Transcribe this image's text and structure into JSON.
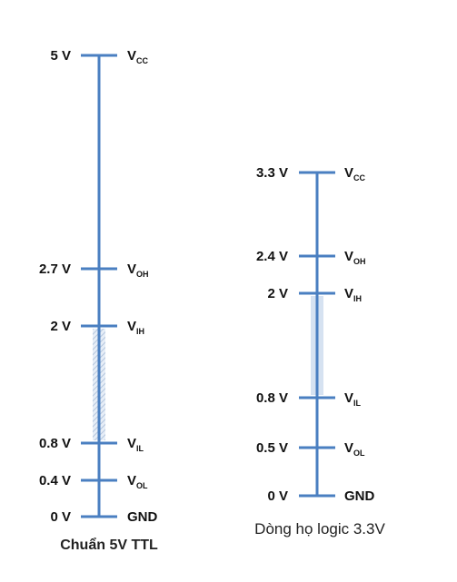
{
  "panels": [
    {
      "id": "ttl-5v",
      "caption": "Chuẩn 5V TTL",
      "caption_bold": true,
      "levels": [
        {
          "voltage": "5 V",
          "label": "V",
          "sub": "CC",
          "value": 5.0
        },
        {
          "voltage": "2.7 V",
          "label": "V",
          "sub": "OH",
          "value": 2.7
        },
        {
          "voltage": "2 V",
          "label": "V",
          "sub": "IH",
          "value": 2.0
        },
        {
          "voltage": "0.8 V",
          "label": "V",
          "sub": "IL",
          "value": 0.8
        },
        {
          "voltage": "0.4 V",
          "label": "V",
          "sub": "OL",
          "value": 0.4
        },
        {
          "voltage": "0 V",
          "label": "GND",
          "sub": "",
          "value": 0.0
        }
      ],
      "undefined_region": {
        "from": 0.8,
        "to": 2.0,
        "style": "hatched"
      }
    },
    {
      "id": "logic-3v3",
      "caption": "Dòng họ logic 3.3V",
      "caption_bold": false,
      "levels": [
        {
          "voltage": "3.3 V",
          "label": "V",
          "sub": "CC",
          "value": 3.3
        },
        {
          "voltage": "2.4 V",
          "label": "V",
          "sub": "OH",
          "value": 2.4
        },
        {
          "voltage": "2 V",
          "label": "V",
          "sub": "IH",
          "value": 2.0
        },
        {
          "voltage": "0.8 V",
          "label": "V",
          "sub": "IL",
          "value": 0.8
        },
        {
          "voltage": "0.5 V",
          "label": "V",
          "sub": "OL",
          "value": 0.5
        },
        {
          "voltage": "0 V",
          "label": "GND",
          "sub": "",
          "value": 0.0
        }
      ],
      "undefined_region": {
        "from": 0.8,
        "to": 2.0,
        "style": "solid"
      }
    }
  ],
  "colors": {
    "axis": "#4a7fc1",
    "hatch": "#b4c6de",
    "solid_region": "#d6e2f1",
    "text": "#111111"
  }
}
